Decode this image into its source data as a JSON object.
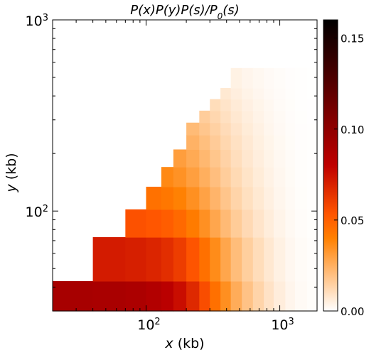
{
  "chart_data": {
    "type": "heatmap",
    "title": "P(x)P(y)P(s)/P0(s)",
    "xlabel": "x (kb)",
    "ylabel": "y (kb)",
    "x_scale": "log",
    "y_scale": "log",
    "xlim": [
      20,
      1900
    ],
    "ylim": [
      30,
      1000
    ],
    "x_major_ticks": [
      {
        "value": 100,
        "base": "10",
        "exp": "2"
      },
      {
        "value": 1000,
        "base": "10",
        "exp": "3"
      }
    ],
    "y_major_ticks": [
      {
        "value": 100,
        "base": "10",
        "exp": "2"
      },
      {
        "value": 1000,
        "base": "10",
        "exp": "3"
      }
    ],
    "colorbar": {
      "colormap": "gist_heat_r",
      "range": [
        0.0,
        0.16
      ],
      "ticks": [
        0.0,
        0.05,
        0.1,
        0.15
      ],
      "tick_labels": [
        "0.00",
        "0.05",
        "0.10",
        "0.15"
      ]
    },
    "y_bins": [
      [
        30,
        43
      ],
      [
        43,
        73
      ],
      [
        73,
        102
      ],
      [
        102,
        134
      ],
      [
        134,
        170
      ],
      [
        170,
        210
      ],
      [
        210,
        250
      ],
      [
        250,
        290
      ],
      [
        290,
        335
      ],
      [
        335,
        385
      ],
      [
        385,
        440
      ],
      [
        440,
        560
      ]
    ],
    "x_bins": [
      [
        20,
        40
      ],
      [
        40,
        70
      ],
      [
        70,
        100
      ],
      [
        100,
        130
      ],
      [
        130,
        160
      ],
      [
        160,
        200
      ],
      [
        200,
        250
      ],
      [
        250,
        300
      ],
      [
        300,
        360
      ],
      [
        360,
        430
      ],
      [
        430,
        520
      ],
      [
        520,
        630
      ],
      [
        630,
        760
      ],
      [
        760,
        900
      ],
      [
        900,
        1100
      ],
      [
        1100,
        1300
      ],
      [
        1300,
        1600
      ],
      [
        1600,
        1900
      ]
    ],
    "heat_profile": {
      "x_center": [
        20,
        40,
        70,
        100,
        130,
        160,
        200,
        250,
        300,
        360,
        430,
        520,
        630,
        760,
        900,
        1100,
        1300,
        1600,
        1900
      ],
      "value": [
        0.09,
        0.09,
        0.089,
        0.087,
        0.084,
        0.08,
        0.072,
        0.062,
        0.05,
        0.04,
        0.03,
        0.022,
        0.016,
        0.011,
        0.007,
        0.004,
        0.002,
        0.001,
        0.0005
      ]
    },
    "row_value_scale": [
      1.0,
      0.8,
      0.62,
      0.52,
      0.45,
      0.4,
      0.36,
      0.32,
      0.28,
      0.24,
      0.2,
      0.16
    ],
    "mask_note": "cells shown only where y <= x (triangular region)"
  }
}
